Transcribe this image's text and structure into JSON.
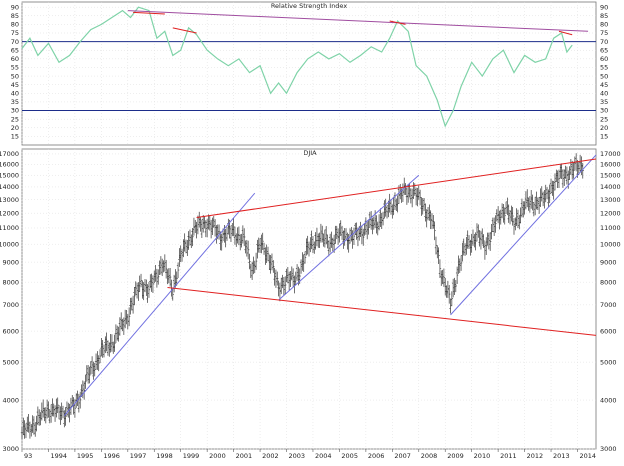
{
  "chart_data": [
    {
      "type": "line",
      "title": "Relative Strength Index",
      "xlabel": "",
      "ylabel": "",
      "ylim": [
        10,
        93
      ],
      "y_ticks": [
        15,
        20,
        25,
        30,
        35,
        40,
        45,
        50,
        55,
        60,
        65,
        70,
        75,
        80,
        85,
        90
      ],
      "reference_lines": [
        30,
        70
      ],
      "series": [
        {
          "color": "#7fd3a8",
          "points": [
            [
              1993.0,
              66
            ],
            [
              1993.3,
              72
            ],
            [
              1993.6,
              62
            ],
            [
              1994.0,
              69
            ],
            [
              1994.4,
              58
            ],
            [
              1994.8,
              62
            ],
            [
              1995.2,
              70
            ],
            [
              1995.6,
              77
            ],
            [
              1996.0,
              80
            ],
            [
              1996.4,
              84
            ],
            [
              1996.8,
              88
            ],
            [
              1997.1,
              84
            ],
            [
              1997.4,
              90
            ],
            [
              1997.8,
              88
            ],
            [
              1998.1,
              72
            ],
            [
              1998.4,
              76
            ],
            [
              1998.7,
              62
            ],
            [
              1999.0,
              65
            ],
            [
              1999.3,
              78
            ],
            [
              1999.6,
              74
            ],
            [
              2000.0,
              65
            ],
            [
              2000.4,
              60
            ],
            [
              2000.8,
              56
            ],
            [
              2001.2,
              60
            ],
            [
              2001.6,
              52
            ],
            [
              2002.0,
              56
            ],
            [
              2002.4,
              40
            ],
            [
              2002.7,
              46
            ],
            [
              2003.0,
              40
            ],
            [
              2003.4,
              52
            ],
            [
              2003.8,
              60
            ],
            [
              2004.2,
              64
            ],
            [
              2004.6,
              60
            ],
            [
              2005.0,
              63
            ],
            [
              2005.4,
              58
            ],
            [
              2005.8,
              62
            ],
            [
              2006.2,
              67
            ],
            [
              2006.6,
              64
            ],
            [
              2006.9,
              72
            ],
            [
              2007.2,
              82
            ],
            [
              2007.6,
              76
            ],
            [
              2007.9,
              56
            ],
            [
              2008.3,
              50
            ],
            [
              2008.7,
              36
            ],
            [
              2009.0,
              21
            ],
            [
              2009.3,
              30
            ],
            [
              2009.6,
              44
            ],
            [
              2010.0,
              58
            ],
            [
              2010.4,
              50
            ],
            [
              2010.8,
              60
            ],
            [
              2011.2,
              65
            ],
            [
              2011.6,
              52
            ],
            [
              2012.0,
              62
            ],
            [
              2012.4,
              58
            ],
            [
              2012.8,
              60
            ],
            [
              2013.1,
              72
            ],
            [
              2013.4,
              75
            ],
            [
              2013.6,
              64
            ],
            [
              2013.8,
              68
            ]
          ]
        }
      ],
      "trendlines": [
        {
          "color": "#a04da0",
          "from": [
            1997.0,
            88
          ],
          "to": [
            2014.4,
            76
          ]
        },
        {
          "color": "#e02020",
          "from": [
            1997.2,
            87
          ],
          "to": [
            1998.4,
            86
          ]
        },
        {
          "color": "#e02020",
          "from": [
            1998.7,
            78
          ],
          "to": [
            1999.6,
            75
          ]
        },
        {
          "color": "#e02020",
          "from": [
            2006.9,
            82
          ],
          "to": [
            2007.5,
            80
          ]
        },
        {
          "color": "#e02020",
          "from": [
            2013.3,
            76
          ],
          "to": [
            2013.8,
            74
          ]
        }
      ]
    },
    {
      "type": "candlestick",
      "title": "DJIA",
      "xlabel": "",
      "ylabel": "",
      "log_scale": true,
      "ylim": [
        3000,
        17500
      ],
      "xlim": [
        1993.0,
        2014.7
      ],
      "y_ticks": [
        3000,
        4000,
        5000,
        6000,
        7000,
        8000,
        9000,
        10000,
        11000,
        12000,
        13000,
        14000,
        15000,
        16000,
        17000
      ],
      "x_ticks": [
        "93",
        "1994",
        "1995",
        "1996",
        "1997",
        "1998",
        "1999",
        "2000",
        "2001",
        "2002",
        "2003",
        "2004",
        "2005",
        "2006",
        "2007",
        "2008",
        "2009",
        "2010",
        "2011",
        "2012",
        "2013",
        "2014"
      ],
      "price_path": [
        [
          1993.0,
          3300
        ],
        [
          1993.5,
          3500
        ],
        [
          1994.0,
          3800
        ],
        [
          1994.5,
          3700
        ],
        [
          1995.0,
          3850
        ],
        [
          1995.5,
          4600
        ],
        [
          1996.0,
          5300
        ],
        [
          1996.5,
          5700
        ],
        [
          1997.0,
          6600
        ],
        [
          1997.5,
          8000
        ],
        [
          1997.8,
          7600
        ],
        [
          1998.3,
          9000
        ],
        [
          1998.7,
          7700
        ],
        [
          1999.0,
          9300
        ],
        [
          1999.5,
          10900
        ],
        [
          2000.0,
          11400
        ],
        [
          2000.5,
          10500
        ],
        [
          2001.0,
          10800
        ],
        [
          2001.4,
          10200
        ],
        [
          2001.7,
          8600
        ],
        [
          2002.0,
          10000
        ],
        [
          2002.4,
          9200
        ],
        [
          2002.7,
          7600
        ],
        [
          2003.0,
          8300
        ],
        [
          2003.3,
          8000
        ],
        [
          2003.8,
          9700
        ],
        [
          2004.2,
          10500
        ],
        [
          2004.6,
          10100
        ],
        [
          2005.0,
          10600
        ],
        [
          2005.5,
          10400
        ],
        [
          2006.0,
          11000
        ],
        [
          2006.5,
          11500
        ],
        [
          2007.0,
          12600
        ],
        [
          2007.5,
          13700
        ],
        [
          2007.8,
          13600
        ],
        [
          2008.2,
          12500
        ],
        [
          2008.5,
          11500
        ],
        [
          2008.8,
          8800
        ],
        [
          2009.0,
          7900
        ],
        [
          2009.2,
          7000
        ],
        [
          2009.5,
          8800
        ],
        [
          2009.8,
          9900
        ],
        [
          2010.2,
          10600
        ],
        [
          2010.5,
          9900
        ],
        [
          2010.9,
          11300
        ],
        [
          2011.3,
          12500
        ],
        [
          2011.6,
          11200
        ],
        [
          2012.0,
          12600
        ],
        [
          2012.4,
          12800
        ],
        [
          2012.8,
          13100
        ],
        [
          2013.0,
          14000
        ],
        [
          2013.4,
          15000
        ],
        [
          2013.7,
          15300
        ],
        [
          2013.9,
          15600
        ],
        [
          2014.2,
          16100
        ]
      ],
      "trendlines": [
        {
          "color": "#7070e0",
          "from": [
            1994.6,
            3650
          ],
          "to": [
            2001.8,
            13500
          ]
        },
        {
          "color": "#7070e0",
          "from": [
            2002.7,
            7200
          ],
          "to": [
            2008.0,
            15000
          ]
        },
        {
          "color": "#7070e0",
          "from": [
            2009.2,
            6600
          ],
          "to": [
            2014.7,
            16900
          ]
        },
        {
          "color": "#e02020",
          "from": [
            1999.6,
            11700
          ],
          "to": [
            2014.7,
            16500
          ]
        },
        {
          "color": "#e02020",
          "from": [
            1998.5,
            7750
          ],
          "to": [
            2014.7,
            5850
          ]
        }
      ]
    }
  ]
}
